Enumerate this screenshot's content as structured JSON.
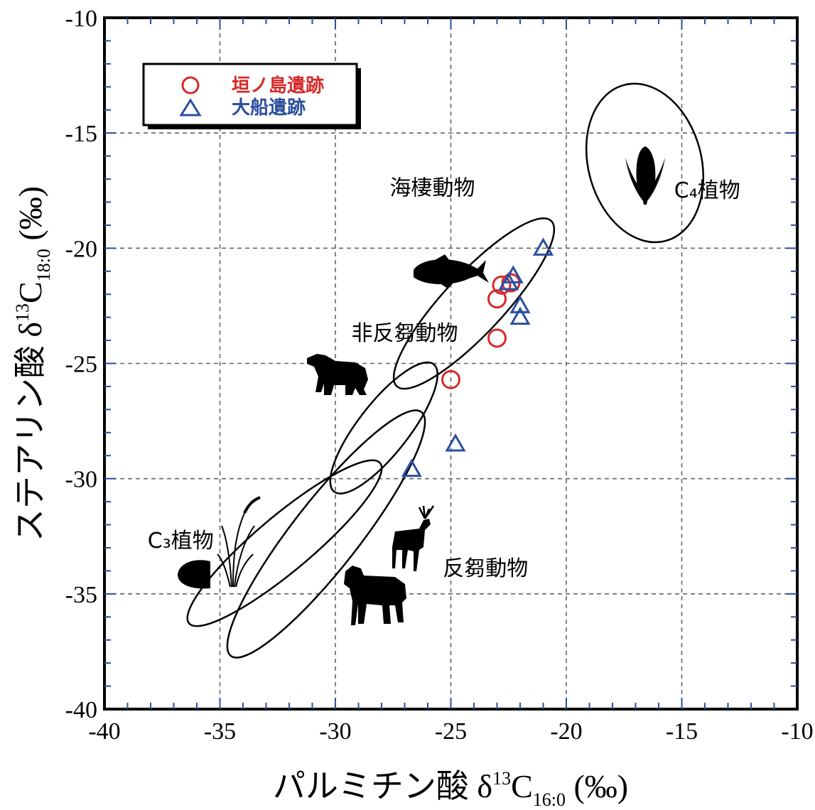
{
  "chart_data": {
    "type": "scatter",
    "title": "",
    "xlabel": {
      "main": "パルミチン酸 δ",
      "sup": "13",
      "c": "C",
      "sub": "16:0",
      "unit": " (‰)"
    },
    "ylabel": {
      "main": "ステアリン酸 δ",
      "sup": "13",
      "c": "C",
      "sub": "18:0",
      "unit": " (‰)"
    },
    "xlim": [
      -40,
      -10
    ],
    "ylim": [
      -40,
      -10
    ],
    "xticks": [
      "-40",
      "-35",
      "-30",
      "-25",
      "-20",
      "-15",
      "-10"
    ],
    "yticks": [
      "-10",
      "-15",
      "-20",
      "-25",
      "-30",
      "-35",
      "-40"
    ],
    "grid": true,
    "legend_position": "top-left",
    "series": [
      {
        "name": "垣ノ島遺跡",
        "marker": "circle",
        "color": "#d62a2a",
        "points": [
          [
            -22.8,
            -21.6
          ],
          [
            -22.4,
            -21.5
          ],
          [
            -23.0,
            -22.2
          ],
          [
            -23.0,
            -23.9
          ],
          [
            -25.0,
            -25.7
          ]
        ]
      },
      {
        "name": "大船遺跡",
        "marker": "triangle",
        "color": "#2b4f9e",
        "points": [
          [
            -21.0,
            -20.0
          ],
          [
            -22.3,
            -21.2
          ],
          [
            -22.5,
            -21.5
          ],
          [
            -22.0,
            -22.5
          ],
          [
            -22.0,
            -23.0
          ],
          [
            -24.8,
            -28.5
          ],
          [
            -26.7,
            -29.6
          ]
        ]
      }
    ],
    "reference_regions": [
      {
        "label": "海棲動物",
        "label_pos": [
          -25.8,
          -17.7
        ],
        "center": [
          -24.0,
          -22.4
        ],
        "rx": 4.9,
        "ry": 1.3,
        "angle": 47
      },
      {
        "label": "非反芻動物",
        "label_pos": [
          -27.0,
          -24.0
        ],
        "center": [
          -27.9,
          -27.8
        ],
        "rx": 3.5,
        "ry": 1.1,
        "angle": 52
      },
      {
        "label": "反芻動物",
        "label_pos": [
          -23.5,
          -34.2
        ],
        "center": [
          -30.4,
          -32.4
        ],
        "rx": 6.7,
        "ry": 1.45,
        "angle": 52
      },
      {
        "label": "C₃植物",
        "label_pos": [
          -36.7,
          -33.0
        ],
        "center": [
          -32.2,
          -32.8
        ],
        "rx": 5.4,
        "ry": 1.2,
        "angle": 40
      },
      {
        "label": "C₄植物",
        "label_pos": [
          -13.9,
          -17.8
        ],
        "center": [
          -16.6,
          -16.3
        ],
        "rx": 2.45,
        "ry": 3.5,
        "angle": 15
      }
    ]
  }
}
